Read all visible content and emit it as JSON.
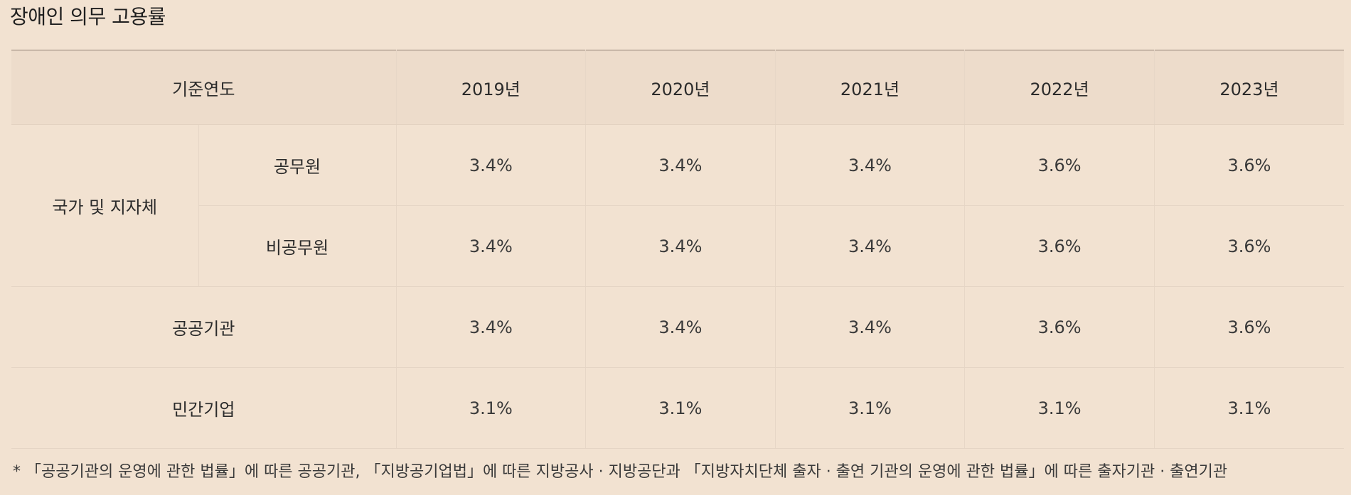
{
  "title": "장애인 의무 고용률",
  "table": {
    "header": {
      "base_year_label": "기준연도",
      "years": [
        "2019년",
        "2020년",
        "2021년",
        "2022년",
        "2023년"
      ]
    },
    "group": {
      "label": "국가 및 지자체",
      "rows": [
        {
          "label": "공무원",
          "values": [
            "3.4%",
            "3.4%",
            "3.4%",
            "3.6%",
            "3.6%"
          ]
        },
        {
          "label": "비공무원",
          "values": [
            "3.4%",
            "3.4%",
            "3.4%",
            "3.6%",
            "3.6%"
          ]
        }
      ]
    },
    "rows": [
      {
        "label": "공공기관",
        "values": [
          "3.4%",
          "3.4%",
          "3.4%",
          "3.6%",
          "3.6%"
        ]
      },
      {
        "label": "민간기업",
        "values": [
          "3.1%",
          "3.1%",
          "3.1%",
          "3.1%",
          "3.1%"
        ]
      }
    ]
  },
  "footnote": "* 「공공기관의 운영에 관한 법률」에 따른 공공기관, 「지방공기업법」에 따른 지방공사 · 지방공단과 「지방자치단체 출자 · 출연 기관의 운영에 관한 법률」에 따른 출자기관 · 출연기관"
}
